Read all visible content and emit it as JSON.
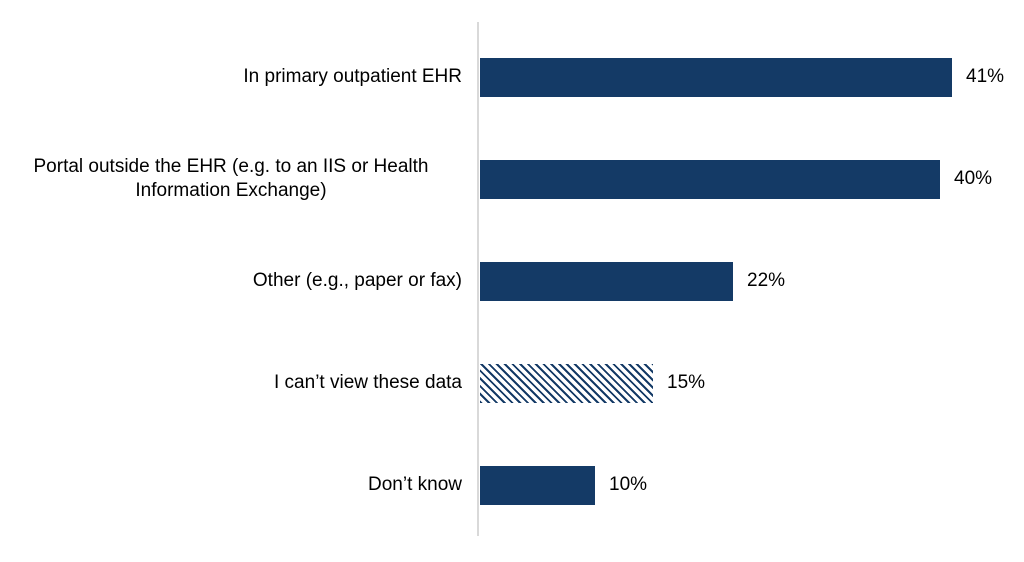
{
  "chart_data": {
    "type": "bar",
    "orientation": "horizontal",
    "title": "",
    "xlabel": "",
    "ylabel": "",
    "xlim": [
      0,
      45
    ],
    "grid": false,
    "legend": false,
    "categories": [
      "In primary outpatient EHR",
      "Portal outside the EHR (e.g. to an IIS or Health Information Exchange)",
      "Other (e.g., paper or fax)",
      "I can’t view these data",
      "Don’t know"
    ],
    "values": [
      41,
      40,
      22,
      15,
      10
    ],
    "value_labels": [
      "41%",
      "40%",
      "22%",
      "15%",
      "10%"
    ],
    "bar_styles": [
      "solid",
      "solid",
      "solid",
      "hatched",
      "solid"
    ],
    "colors": {
      "bar": "#143a66",
      "hatch_background": "#ffffff",
      "axis_line": "#d9d9d9",
      "text": "#000000"
    },
    "pixels_per_percent": 11.5
  }
}
